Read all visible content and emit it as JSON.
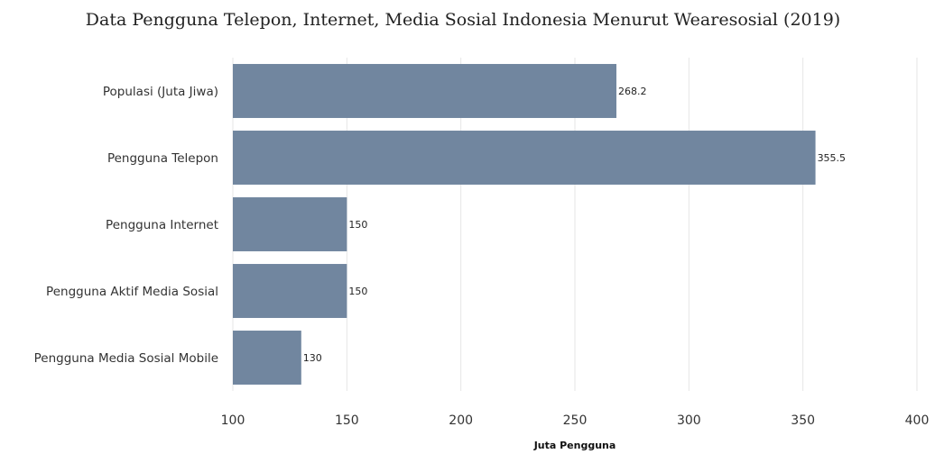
{
  "chart_data": {
    "type": "bar",
    "orientation": "horizontal",
    "title": "Data Pengguna Telepon, Internet, Media Sosial Indonesia Menurut Wearesosial (2019)",
    "xlabel": "Juta Pengguna",
    "ylabel": "",
    "categories": [
      "Populasi (Juta Jiwa)",
      "Pengguna Telepon",
      "Pengguna Internet",
      "Pengguna Aktif Media Sosial",
      "Pengguna Media Sosial Mobile"
    ],
    "values": [
      268.2,
      355.5,
      150,
      150,
      130
    ],
    "data_labels": [
      "268.2",
      "355.5",
      "150",
      "150",
      "130"
    ],
    "xlim": [
      100,
      400
    ],
    "xticks": [
      100,
      150,
      200,
      250,
      300,
      350,
      400
    ],
    "grid": true,
    "legend": "none",
    "bar_color": "#71869f"
  }
}
